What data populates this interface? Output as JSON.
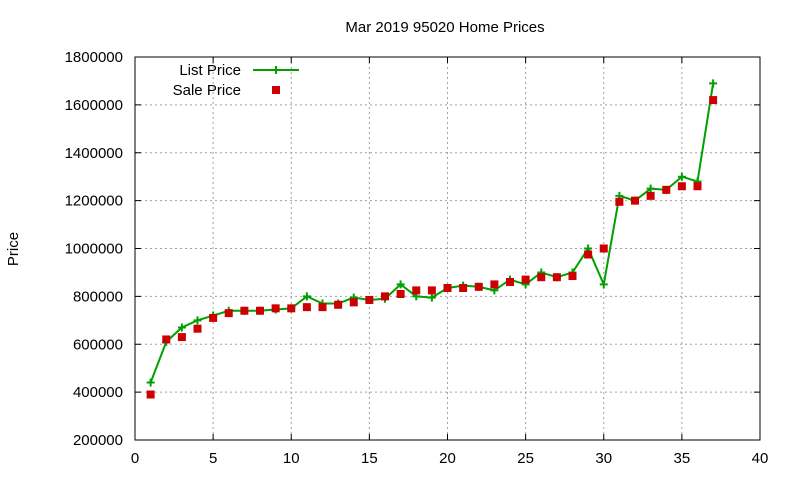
{
  "chart_data": {
    "type": "line",
    "title": "Mar 2019 95020 Home Prices",
    "xlabel": "",
    "ylabel": "Price",
    "xlim": [
      0,
      40
    ],
    "ylim": [
      200000,
      1800000
    ],
    "xticks": [
      0,
      5,
      10,
      15,
      20,
      25,
      30,
      35,
      40
    ],
    "yticks": [
      200000,
      400000,
      600000,
      800000,
      1000000,
      1200000,
      1400000,
      1600000,
      1800000
    ],
    "grid": true,
    "legend_position": "top-left",
    "x": [
      1,
      2,
      3,
      4,
      5,
      6,
      7,
      8,
      9,
      10,
      11,
      12,
      13,
      14,
      15,
      16,
      17,
      18,
      19,
      20,
      21,
      22,
      23,
      24,
      25,
      26,
      27,
      28,
      29,
      30,
      31,
      32,
      33,
      34,
      35,
      36,
      37
    ],
    "series": [
      {
        "name": "List Price",
        "style": "linespoints",
        "marker": "plus",
        "color": "#00a000",
        "values": [
          440000,
          610000,
          670000,
          700000,
          720000,
          740000,
          740000,
          740000,
          745000,
          750000,
          800000,
          770000,
          770000,
          795000,
          785000,
          790000,
          850000,
          800000,
          795000,
          835000,
          845000,
          840000,
          825000,
          870000,
          850000,
          900000,
          880000,
          900000,
          1000000,
          850000,
          1220000,
          1200000,
          1250000,
          1245000,
          1300000,
          1280000,
          1690000
        ]
      },
      {
        "name": "Sale Price",
        "style": "points",
        "marker": "square",
        "color": "#cc0000",
        "values": [
          390000,
          620000,
          630000,
          665000,
          710000,
          730000,
          740000,
          740000,
          750000,
          750000,
          755000,
          755000,
          765000,
          775000,
          785000,
          800000,
          810000,
          825000,
          825000,
          835000,
          835000,
          840000,
          850000,
          860000,
          870000,
          880000,
          880000,
          885000,
          975000,
          1000000,
          1195000,
          1200000,
          1220000,
          1245000,
          1260000,
          1260000,
          1620000
        ]
      }
    ]
  }
}
